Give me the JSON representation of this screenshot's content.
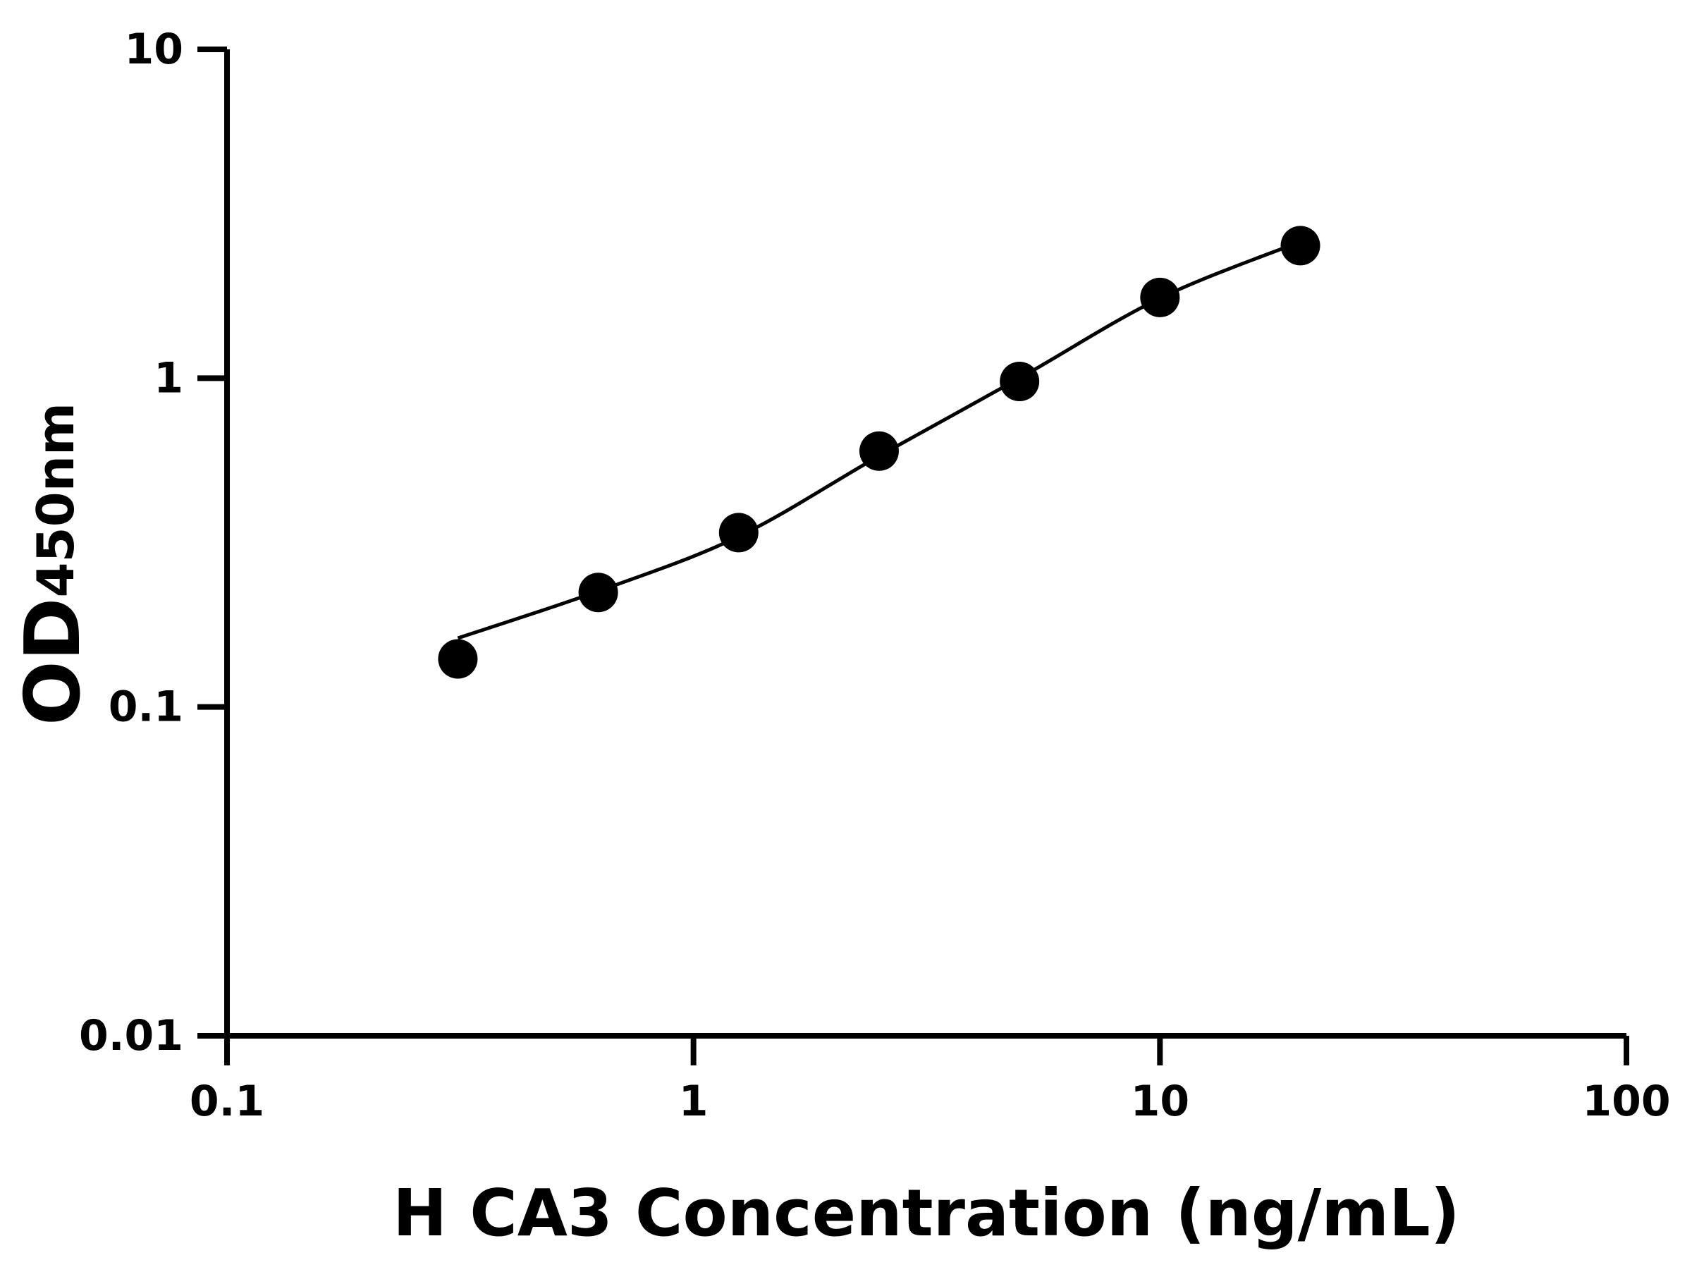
{
  "chart_data": {
    "type": "scatter",
    "x_label": "H CA3 Concentration (ng/mL)",
    "y_label": "OD",
    "y_label_subscript": "450nm",
    "log_x": true,
    "log_y": true,
    "xlim": [
      0.1,
      100
    ],
    "xticks": [
      0.1,
      1,
      10,
      100
    ],
    "ylim": [
      0.01,
      10
    ],
    "yticks": [
      0.01,
      0.1,
      1,
      10
    ],
    "series": [
      {
        "color": "#000000",
        "marker": "circle",
        "x": [
          0.3125,
          0.625,
          1.25,
          2.5,
          5,
          10,
          20
        ],
        "values": [
          0.14,
          0.223,
          0.339,
          0.6,
          0.977,
          1.76,
          2.53
        ]
      },
      {
        "color": "#000000",
        "line": true,
        "x": [
          0.3125,
          0.625,
          1.25,
          2.5,
          5,
          10,
          20
        ],
        "values": [
          0.162,
          0.225,
          0.33,
          0.58,
          1.0,
          1.75,
          2.6
        ]
      }
    ]
  }
}
